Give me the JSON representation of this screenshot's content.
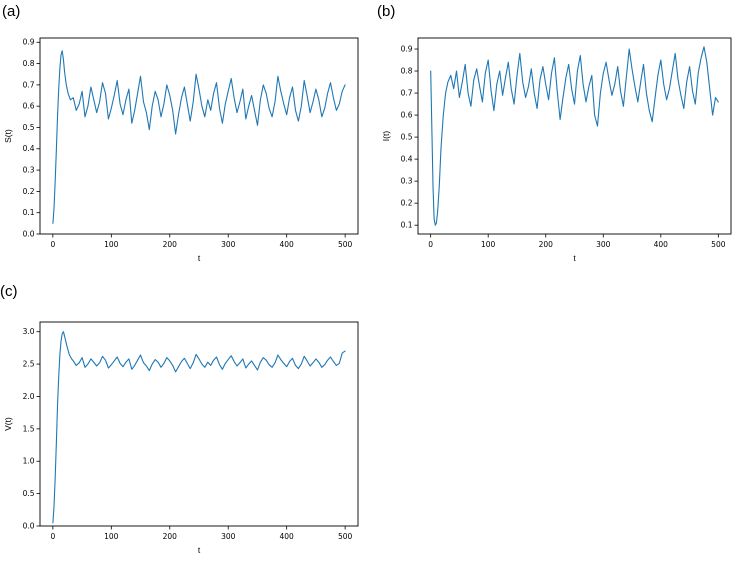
{
  "figure": {
    "background": "#ffffff",
    "frame_color": "#000000"
  },
  "chart_data": [
    {
      "id": "a",
      "type": "line",
      "panel_label": "(a)",
      "xlabel": "t",
      "ylabel": "S(t)",
      "line_color": "#1f77b4",
      "xlim": [
        -22,
        522
      ],
      "ylim": [
        0.0,
        0.92
      ],
      "xtick_values": [
        0,
        100,
        200,
        300,
        400,
        500
      ],
      "xtick_labels": [
        "0",
        "100",
        "200",
        "300",
        "400",
        "500"
      ],
      "ytick_values": [
        0.0,
        0.1,
        0.2,
        0.3,
        0.4,
        0.5,
        0.6,
        0.7,
        0.8,
        0.9
      ],
      "ytick_labels": [
        "0.0",
        "0.1",
        "0.2",
        "0.3",
        "0.4",
        "0.5",
        "0.6",
        "0.7",
        "0.8",
        "0.9"
      ],
      "x": [
        0,
        2,
        4,
        6,
        8,
        10,
        12,
        14,
        16,
        18,
        20,
        23,
        26,
        30,
        35,
        40,
        45,
        50,
        55,
        60,
        65,
        70,
        75,
        80,
        85,
        90,
        95,
        100,
        105,
        110,
        115,
        120,
        125,
        130,
        135,
        140,
        145,
        150,
        155,
        160,
        165,
        170,
        175,
        180,
        185,
        190,
        195,
        200,
        205,
        210,
        215,
        220,
        225,
        230,
        235,
        240,
        245,
        250,
        255,
        260,
        265,
        270,
        275,
        280,
        285,
        290,
        295,
        300,
        305,
        310,
        315,
        320,
        325,
        330,
        335,
        340,
        345,
        350,
        355,
        360,
        365,
        370,
        375,
        380,
        385,
        390,
        395,
        400,
        405,
        410,
        415,
        420,
        425,
        430,
        435,
        440,
        445,
        450,
        455,
        460,
        465,
        470,
        475,
        480,
        485,
        490,
        495,
        500
      ],
      "y": [
        0.05,
        0.12,
        0.25,
        0.4,
        0.55,
        0.68,
        0.78,
        0.84,
        0.86,
        0.82,
        0.76,
        0.7,
        0.66,
        0.63,
        0.64,
        0.58,
        0.61,
        0.67,
        0.55,
        0.6,
        0.69,
        0.63,
        0.57,
        0.62,
        0.71,
        0.66,
        0.54,
        0.59,
        0.65,
        0.72,
        0.61,
        0.56,
        0.63,
        0.68,
        0.52,
        0.58,
        0.66,
        0.74,
        0.62,
        0.57,
        0.49,
        0.6,
        0.67,
        0.63,
        0.55,
        0.61,
        0.7,
        0.65,
        0.58,
        0.47,
        0.56,
        0.64,
        0.69,
        0.61,
        0.53,
        0.62,
        0.75,
        0.68,
        0.6,
        0.55,
        0.63,
        0.58,
        0.66,
        0.71,
        0.59,
        0.52,
        0.61,
        0.67,
        0.73,
        0.64,
        0.57,
        0.62,
        0.68,
        0.54,
        0.6,
        0.65,
        0.58,
        0.51,
        0.63,
        0.7,
        0.66,
        0.59,
        0.55,
        0.62,
        0.74,
        0.67,
        0.61,
        0.56,
        0.64,
        0.69,
        0.58,
        0.53,
        0.6,
        0.72,
        0.65,
        0.57,
        0.62,
        0.68,
        0.63,
        0.55,
        0.59,
        0.66,
        0.71,
        0.64,
        0.58,
        0.61,
        0.67,
        0.7
      ]
    },
    {
      "id": "b",
      "type": "line",
      "panel_label": "(b)",
      "xlabel": "t",
      "ylabel": "I(t)",
      "line_color": "#1f77b4",
      "xlim": [
        -22,
        522
      ],
      "ylim": [
        0.06,
        0.95
      ],
      "xtick_values": [
        0,
        100,
        200,
        300,
        400,
        500
      ],
      "xtick_labels": [
        "0",
        "100",
        "200",
        "300",
        "400",
        "500"
      ],
      "ytick_values": [
        0.1,
        0.2,
        0.3,
        0.4,
        0.5,
        0.6,
        0.7,
        0.8,
        0.9
      ],
      "ytick_labels": [
        "0.1",
        "0.2",
        "0.3",
        "0.4",
        "0.5",
        "0.6",
        "0.7",
        "0.8",
        "0.9"
      ],
      "x": [
        0,
        2,
        4,
        6,
        8,
        10,
        12,
        15,
        18,
        22,
        26,
        30,
        35,
        40,
        45,
        50,
        55,
        60,
        65,
        70,
        75,
        80,
        85,
        90,
        95,
        100,
        105,
        110,
        115,
        120,
        125,
        130,
        135,
        140,
        145,
        150,
        155,
        160,
        165,
        170,
        175,
        180,
        185,
        190,
        195,
        200,
        205,
        210,
        215,
        220,
        225,
        230,
        235,
        240,
        245,
        250,
        255,
        260,
        265,
        270,
        275,
        280,
        285,
        290,
        295,
        300,
        305,
        310,
        315,
        320,
        325,
        330,
        335,
        340,
        345,
        350,
        355,
        360,
        365,
        370,
        375,
        380,
        385,
        390,
        395,
        400,
        405,
        410,
        415,
        420,
        425,
        430,
        435,
        440,
        445,
        450,
        455,
        460,
        465,
        470,
        475,
        480,
        485,
        490,
        495,
        500
      ],
      "y": [
        0.8,
        0.55,
        0.28,
        0.13,
        0.1,
        0.11,
        0.16,
        0.28,
        0.45,
        0.6,
        0.7,
        0.75,
        0.78,
        0.72,
        0.8,
        0.68,
        0.75,
        0.83,
        0.7,
        0.64,
        0.76,
        0.81,
        0.73,
        0.66,
        0.79,
        0.85,
        0.71,
        0.62,
        0.74,
        0.8,
        0.69,
        0.77,
        0.84,
        0.72,
        0.65,
        0.78,
        0.88,
        0.75,
        0.68,
        0.73,
        0.81,
        0.7,
        0.63,
        0.76,
        0.82,
        0.74,
        0.67,
        0.79,
        0.86,
        0.71,
        0.58,
        0.68,
        0.77,
        0.83,
        0.72,
        0.65,
        0.8,
        0.87,
        0.74,
        0.66,
        0.73,
        0.78,
        0.6,
        0.55,
        0.7,
        0.79,
        0.84,
        0.76,
        0.69,
        0.74,
        0.82,
        0.71,
        0.64,
        0.77,
        0.9,
        0.81,
        0.73,
        0.66,
        0.75,
        0.83,
        0.7,
        0.62,
        0.57,
        0.68,
        0.78,
        0.85,
        0.74,
        0.67,
        0.72,
        0.8,
        0.88,
        0.76,
        0.69,
        0.63,
        0.75,
        0.82,
        0.71,
        0.65,
        0.79,
        0.86,
        0.91,
        0.84,
        0.72,
        0.6,
        0.68,
        0.66
      ]
    },
    {
      "id": "c",
      "type": "line",
      "panel_label": "(c)",
      "xlabel": "t",
      "ylabel": "V(t)",
      "line_color": "#1f77b4",
      "xlim": [
        -22,
        522
      ],
      "ylim": [
        0.0,
        3.15
      ],
      "xtick_values": [
        0,
        100,
        200,
        300,
        400,
        500
      ],
      "xtick_labels": [
        "0",
        "100",
        "200",
        "300",
        "400",
        "500"
      ],
      "ytick_values": [
        0.0,
        0.5,
        1.0,
        1.5,
        2.0,
        2.5,
        3.0
      ],
      "ytick_labels": [
        "0.0",
        "0.5",
        "1.0",
        "1.5",
        "2.0",
        "2.5",
        "3.0"
      ],
      "x": [
        0,
        2,
        4,
        6,
        8,
        10,
        12,
        14,
        16,
        18,
        20,
        24,
        28,
        32,
        35,
        40,
        45,
        50,
        55,
        60,
        65,
        70,
        75,
        80,
        85,
        90,
        95,
        100,
        105,
        110,
        115,
        120,
        125,
        130,
        135,
        140,
        145,
        150,
        155,
        160,
        165,
        170,
        175,
        180,
        185,
        190,
        195,
        200,
        205,
        210,
        215,
        220,
        225,
        230,
        235,
        240,
        245,
        250,
        255,
        260,
        265,
        270,
        275,
        280,
        285,
        290,
        295,
        300,
        305,
        310,
        315,
        320,
        325,
        330,
        335,
        340,
        345,
        350,
        355,
        360,
        365,
        370,
        375,
        380,
        385,
        390,
        395,
        400,
        405,
        410,
        415,
        420,
        425,
        430,
        435,
        440,
        445,
        450,
        455,
        460,
        465,
        470,
        475,
        480,
        485,
        490,
        495,
        500
      ],
      "y": [
        0.05,
        0.3,
        0.75,
        1.3,
        1.85,
        2.3,
        2.65,
        2.85,
        2.97,
        3.0,
        2.93,
        2.78,
        2.65,
        2.58,
        2.55,
        2.48,
        2.52,
        2.6,
        2.45,
        2.5,
        2.58,
        2.53,
        2.47,
        2.52,
        2.62,
        2.56,
        2.44,
        2.49,
        2.55,
        2.61,
        2.51,
        2.46,
        2.53,
        2.58,
        2.42,
        2.48,
        2.56,
        2.64,
        2.52,
        2.47,
        2.4,
        2.5,
        2.57,
        2.53,
        2.45,
        2.51,
        2.6,
        2.55,
        2.48,
        2.38,
        2.46,
        2.54,
        2.59,
        2.51,
        2.43,
        2.52,
        2.65,
        2.58,
        2.5,
        2.45,
        2.53,
        2.48,
        2.56,
        2.61,
        2.49,
        2.42,
        2.51,
        2.57,
        2.63,
        2.54,
        2.47,
        2.52,
        2.58,
        2.44,
        2.5,
        2.55,
        2.48,
        2.41,
        2.53,
        2.6,
        2.56,
        2.49,
        2.45,
        2.52,
        2.64,
        2.57,
        2.51,
        2.46,
        2.54,
        2.59,
        2.48,
        2.43,
        2.5,
        2.62,
        2.55,
        2.47,
        2.52,
        2.58,
        2.53,
        2.45,
        2.49,
        2.56,
        2.61,
        2.54,
        2.48,
        2.51,
        2.67,
        2.7
      ]
    }
  ]
}
